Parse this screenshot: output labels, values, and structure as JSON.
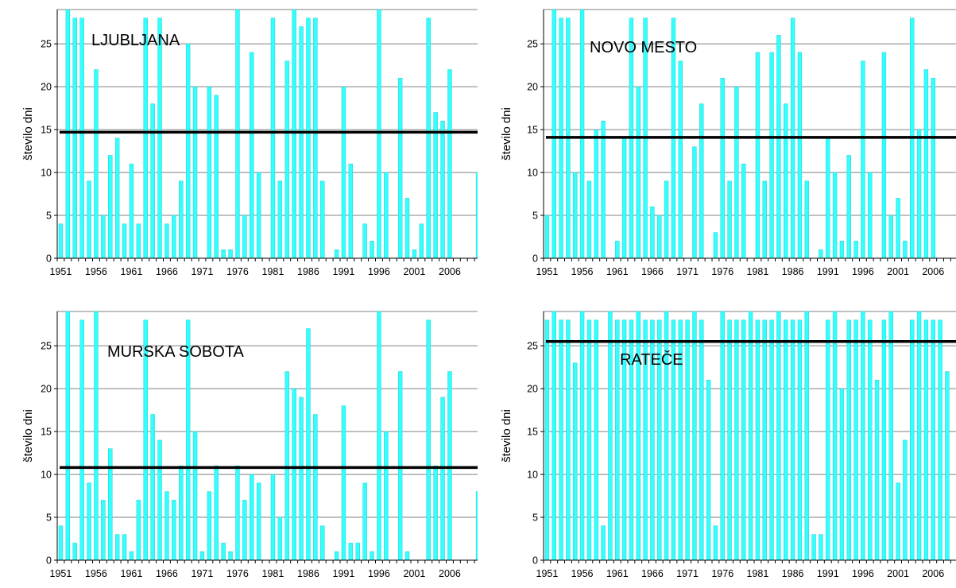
{
  "chart_data": [
    {
      "type": "bar",
      "title": "LJUBLJANA",
      "ylabel": "število dni",
      "ylim": [
        0,
        29
      ],
      "yticks": [
        0,
        5,
        10,
        15,
        20,
        25
      ],
      "x_tick_labels": [
        "1951",
        "1956",
        "1961",
        "1966",
        "1971",
        "1976",
        "1981",
        "1986",
        "1991",
        "1996",
        "2001",
        "2006"
      ],
      "x": [
        1951,
        1952,
        1953,
        1954,
        1955,
        1956,
        1957,
        1958,
        1959,
        1960,
        1961,
        1962,
        1963,
        1964,
        1965,
        1966,
        1967,
        1968,
        1969,
        1970,
        1971,
        1972,
        1973,
        1974,
        1975,
        1976,
        1977,
        1978,
        1979,
        1980,
        1981,
        1982,
        1983,
        1984,
        1985,
        1986,
        1987,
        1988,
        1989,
        1990,
        1991,
        1992,
        1993,
        1994,
        1995,
        1996,
        1997,
        1998,
        1999,
        2000,
        2001,
        2002,
        2003,
        2004,
        2005,
        2006,
        2007,
        2008,
        2009,
        2010
      ],
      "values": [
        4,
        29,
        28,
        28,
        9,
        22,
        5,
        12,
        14,
        4,
        11,
        4,
        28,
        18,
        28,
        4,
        5,
        9,
        25,
        20,
        0,
        20,
        19,
        1,
        1,
        29,
        5,
        24,
        10,
        0,
        28,
        9,
        23,
        29,
        27,
        28,
        28,
        9,
        0,
        1,
        20,
        11,
        0,
        4,
        2,
        29,
        10,
        0,
        21,
        7,
        1,
        4,
        28,
        17,
        16,
        22,
        0,
        0,
        0,
        10
      ],
      "average": 14.7,
      "bar_color": "#33ffff",
      "average_line_color": "#000000",
      "grid": true
    },
    {
      "type": "bar",
      "title": "NOVO MESTO",
      "ylabel": "število dni",
      "ylim": [
        0,
        29
      ],
      "yticks": [
        0,
        5,
        10,
        15,
        20,
        25
      ],
      "x_tick_labels": [
        "1951",
        "1956",
        "1961",
        "1966",
        "1971",
        "1976",
        "1981",
        "1986",
        "1991",
        "1996",
        "2001",
        "2006"
      ],
      "x": [
        1951,
        1952,
        1953,
        1954,
        1955,
        1956,
        1957,
        1958,
        1959,
        1960,
        1961,
        1962,
        1963,
        1964,
        1965,
        1966,
        1967,
        1968,
        1969,
        1970,
        1971,
        1972,
        1973,
        1974,
        1975,
        1976,
        1977,
        1978,
        1979,
        1980,
        1981,
        1982,
        1983,
        1984,
        1985,
        1986,
        1987,
        1988,
        1989,
        1990,
        1991,
        1992,
        1993,
        1994,
        1995,
        1996,
        1997,
        1998,
        1999,
        2000,
        2001,
        2002,
        2003,
        2004,
        2005,
        2006,
        2007,
        2008,
        2009,
        2010
      ],
      "values": [
        5,
        29,
        28,
        28,
        10,
        29,
        9,
        15,
        16,
        0,
        2,
        14,
        28,
        20,
        28,
        6,
        5,
        9,
        28,
        23,
        0,
        13,
        18,
        0,
        3,
        21,
        9,
        20,
        11,
        0,
        24,
        9,
        24,
        26,
        18,
        28,
        24,
        9,
        0,
        1,
        14,
        10,
        2,
        12,
        2,
        23,
        10,
        0,
        24,
        5,
        7,
        2,
        28,
        15,
        22,
        21,
        0,
        0,
        0,
        0
      ],
      "average": 14.1,
      "bar_color": "#33ffff",
      "average_line_color": "#000000",
      "grid": true
    },
    {
      "type": "bar",
      "title": "MURSKA SOBOTA",
      "ylabel": "število dni",
      "ylim": [
        0,
        29
      ],
      "yticks": [
        0,
        5,
        10,
        15,
        20,
        25
      ],
      "x_tick_labels": [
        "1951",
        "1956",
        "1961",
        "1966",
        "1971",
        "1976",
        "1981",
        "1986",
        "1991",
        "1996",
        "2001",
        "2006"
      ],
      "x": [
        1951,
        1952,
        1953,
        1954,
        1955,
        1956,
        1957,
        1958,
        1959,
        1960,
        1961,
        1962,
        1963,
        1964,
        1965,
        1966,
        1967,
        1968,
        1969,
        1970,
        1971,
        1972,
        1973,
        1974,
        1975,
        1976,
        1977,
        1978,
        1979,
        1980,
        1981,
        1982,
        1983,
        1984,
        1985,
        1986,
        1987,
        1988,
        1989,
        1990,
        1991,
        1992,
        1993,
        1994,
        1995,
        1996,
        1997,
        1998,
        1999,
        2000,
        2001,
        2002,
        2003,
        2004,
        2005,
        2006,
        2007,
        2008,
        2009,
        2010
      ],
      "values": [
        4,
        29,
        2,
        28,
        9,
        29,
        7,
        13,
        3,
        3,
        1,
        7,
        28,
        17,
        14,
        8,
        7,
        11,
        28,
        15,
        1,
        8,
        11,
        2,
        1,
        11,
        7,
        10,
        9,
        0,
        10,
        5,
        22,
        20,
        19,
        27,
        17,
        4,
        0,
        1,
        18,
        2,
        2,
        9,
        1,
        29,
        15,
        0,
        22,
        1,
        0,
        0,
        28,
        11,
        19,
        22,
        0,
        0,
        0,
        8
      ],
      "average": 10.8,
      "bar_color": "#33ffff",
      "average_line_color": "#000000",
      "grid": true
    },
    {
      "type": "bar",
      "title": "RATEČE",
      "ylabel": "število dni",
      "ylim": [
        0,
        29
      ],
      "yticks": [
        0,
        5,
        10,
        15,
        20,
        25
      ],
      "x_tick_labels": [
        "1951",
        "1956",
        "1961",
        "1966",
        "1971",
        "1976",
        "1981",
        "1986",
        "1991",
        "1996",
        "2001",
        "2006"
      ],
      "x": [
        1951,
        1952,
        1953,
        1954,
        1955,
        1956,
        1957,
        1958,
        1959,
        1960,
        1961,
        1962,
        1963,
        1964,
        1965,
        1966,
        1967,
        1968,
        1969,
        1970,
        1971,
        1972,
        1973,
        1974,
        1975,
        1976,
        1977,
        1978,
        1979,
        1980,
        1981,
        1982,
        1983,
        1984,
        1985,
        1986,
        1987,
        1988,
        1989,
        1990,
        1991,
        1992,
        1993,
        1994,
        1995,
        1996,
        1997,
        1998,
        1999,
        2000,
        2001,
        2002,
        2003,
        2004,
        2005,
        2006,
        2007,
        2008,
        2009,
        2010
      ],
      "values": [
        28,
        29,
        28,
        28,
        23,
        29,
        28,
        28,
        4,
        29,
        28,
        28,
        28,
        29,
        28,
        28,
        28,
        29,
        28,
        28,
        28,
        29,
        28,
        21,
        4,
        29,
        28,
        28,
        28,
        29,
        28,
        28,
        28,
        29,
        28,
        28,
        28,
        29,
        3,
        3,
        28,
        29,
        20,
        28,
        28,
        29,
        28,
        21,
        28,
        29,
        9,
        14,
        28,
        29,
        28,
        28,
        28,
        22,
        0,
        0
      ],
      "average": 25.5,
      "bar_color": "#33ffff",
      "average_line_color": "#000000",
      "grid": true
    }
  ]
}
